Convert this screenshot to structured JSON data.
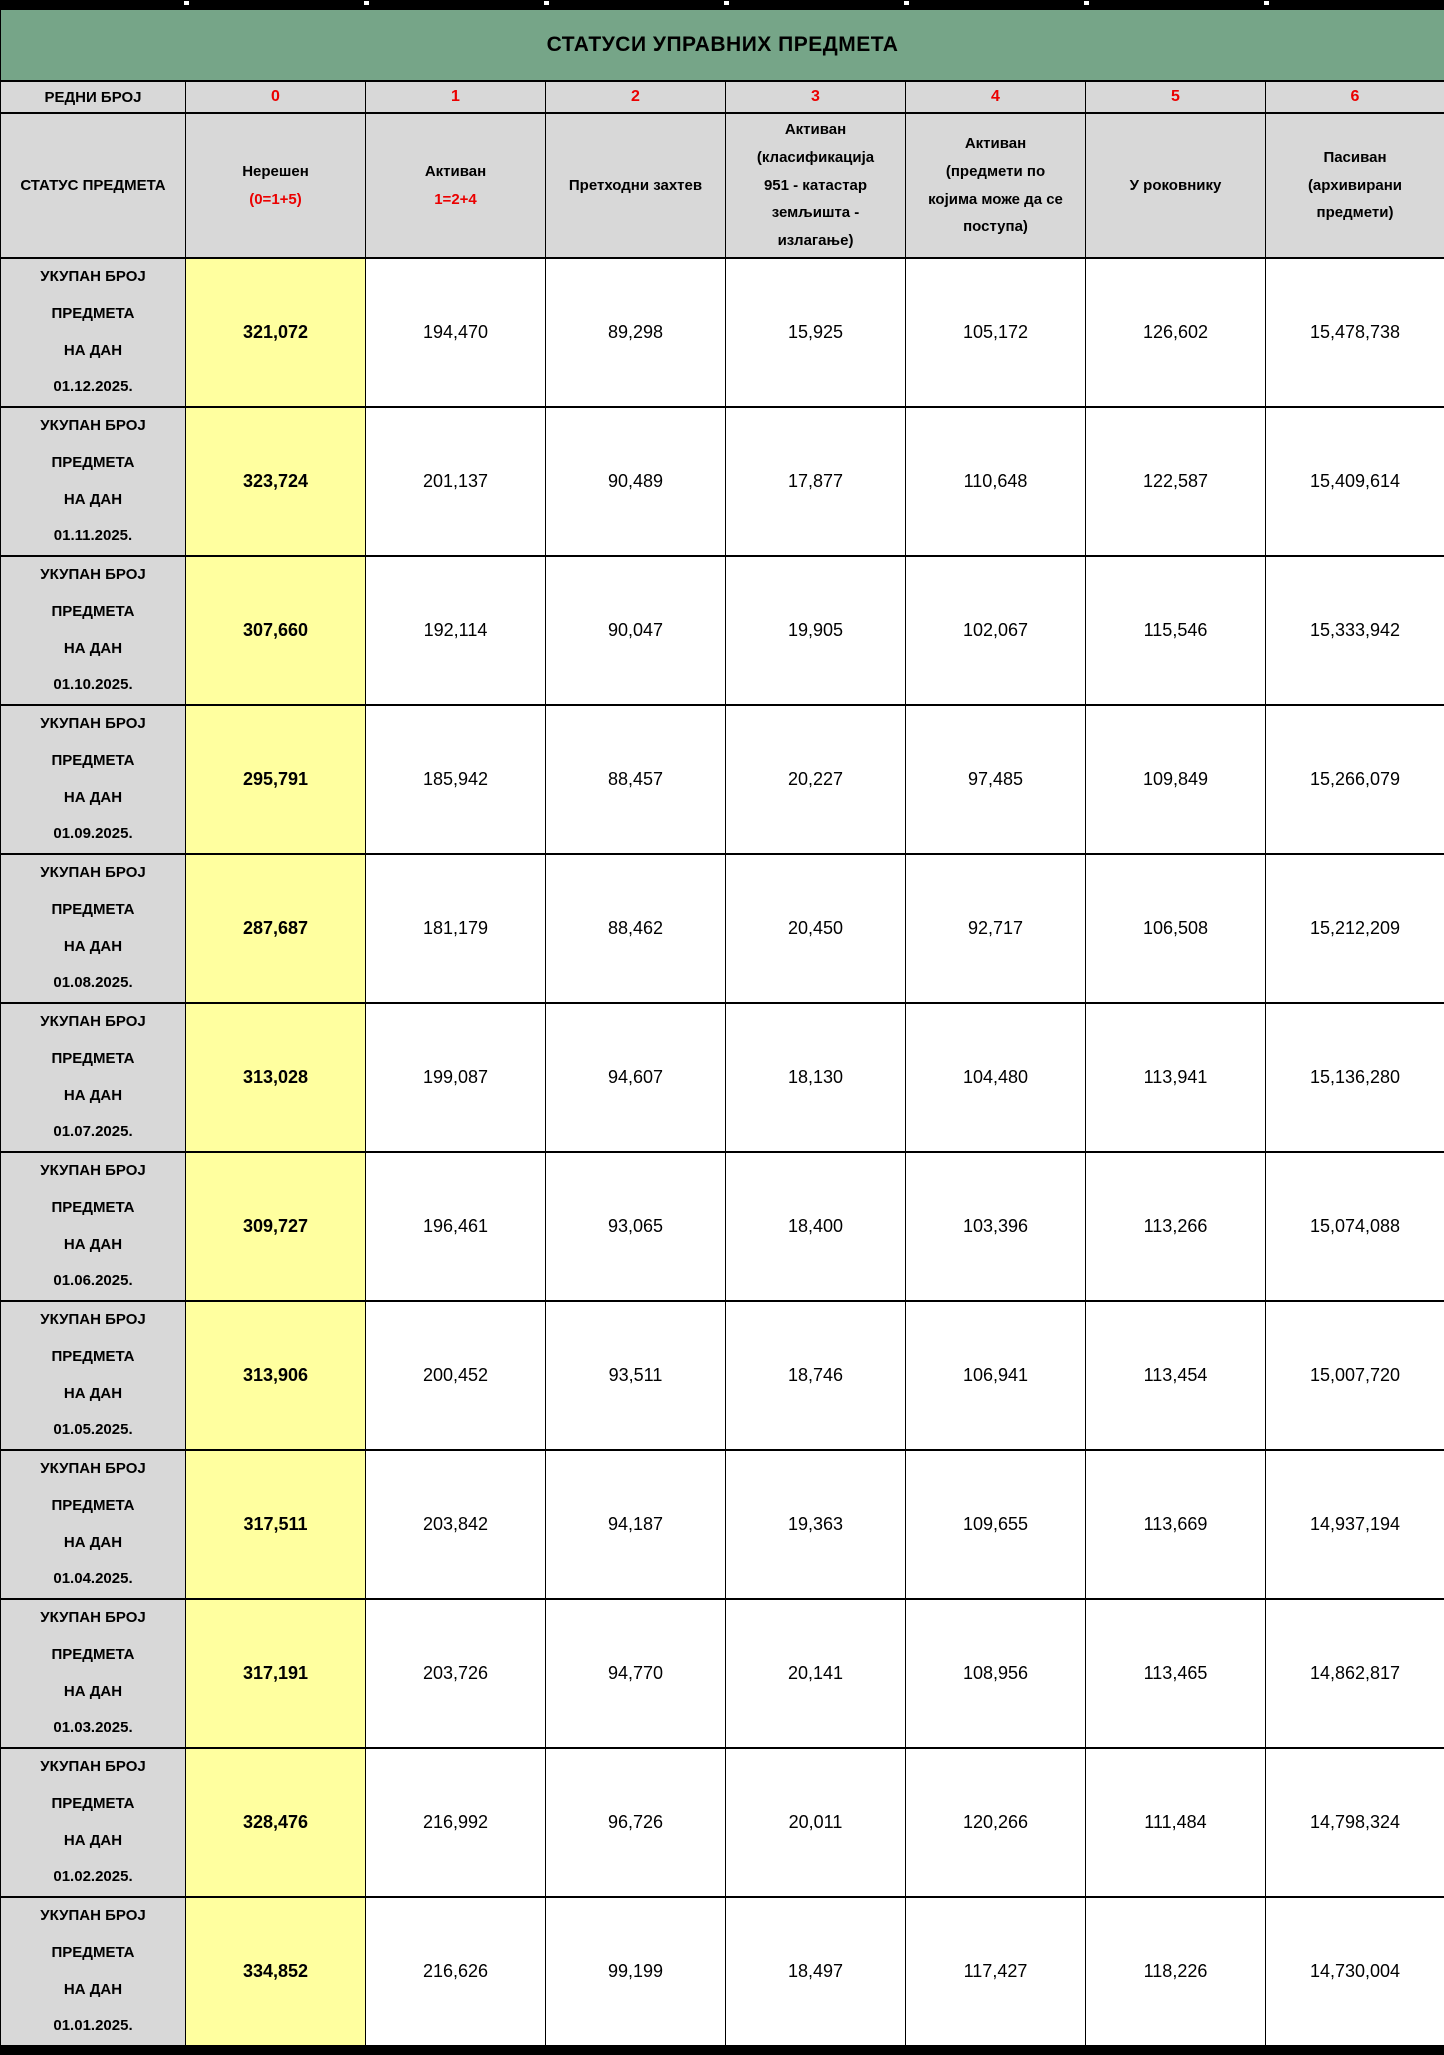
{
  "title": "СТАТУСИ УПРАВНИХ ПРЕДМЕТА",
  "colors": {
    "title_bg": "#76a588",
    "header_bg": "#d8d8d8",
    "highlight_bg": "#ffff9f",
    "red_text": "#eb0000",
    "border": "#000000"
  },
  "table": {
    "corner": {
      "ordinal_label": "РЕДНИ БРОЈ",
      "status_label": "СТАТУС ПРЕДМЕТА"
    },
    "columns": [
      {
        "index": "0",
        "black_lines": [
          "Нерешен"
        ],
        "red_lines": [
          "(0=1+5)"
        ]
      },
      {
        "index": "1",
        "black_lines": [
          "Активан"
        ],
        "red_lines": [
          "1=2+4"
        ]
      },
      {
        "index": "2",
        "black_lines": [
          "Претходни захтев"
        ],
        "red_lines": []
      },
      {
        "index": "3",
        "black_lines": [
          "Активан",
          "(класификација",
          "951 -  катастар",
          "земљишта -",
          "излагање)"
        ],
        "red_lines": []
      },
      {
        "index": "4",
        "black_lines": [
          "Активан",
          "(предмети по",
          "којима може да се",
          "поступа)"
        ],
        "red_lines": []
      },
      {
        "index": "5",
        "black_lines": [
          "У роковнику"
        ],
        "red_lines": []
      },
      {
        "index": "6",
        "black_lines": [
          "Пасиван",
          "(архивирани",
          "предмети)"
        ],
        "red_lines": []
      }
    ],
    "row_label_lines": [
      "УКУПАН БРОЈ",
      "ПРЕДМЕТА",
      "НА ДАН"
    ],
    "rows": [
      {
        "date": "01.12.2025.",
        "values": [
          "321,072",
          "194,470",
          "89,298",
          "15,925",
          "105,172",
          "126,602",
          "15,478,738"
        ]
      },
      {
        "date": "01.11.2025.",
        "values": [
          "323,724",
          "201,137",
          "90,489",
          "17,877",
          "110,648",
          "122,587",
          "15,409,614"
        ]
      },
      {
        "date": "01.10.2025.",
        "values": [
          "307,660",
          "192,114",
          "90,047",
          "19,905",
          "102,067",
          "115,546",
          "15,333,942"
        ]
      },
      {
        "date": "01.09.2025.",
        "values": [
          "295,791",
          "185,942",
          "88,457",
          "20,227",
          "97,485",
          "109,849",
          "15,266,079"
        ]
      },
      {
        "date": "01.08.2025.",
        "values": [
          "287,687",
          "181,179",
          "88,462",
          "20,450",
          "92,717",
          "106,508",
          "15,212,209"
        ]
      },
      {
        "date": "01.07.2025.",
        "values": [
          "313,028",
          "199,087",
          "94,607",
          "18,130",
          "104,480",
          "113,941",
          "15,136,280"
        ]
      },
      {
        "date": "01.06.2025.",
        "values": [
          "309,727",
          "196,461",
          "93,065",
          "18,400",
          "103,396",
          "113,266",
          "15,074,088"
        ]
      },
      {
        "date": "01.05.2025.",
        "values": [
          "313,906",
          "200,452",
          "93,511",
          "18,746",
          "106,941",
          "113,454",
          "15,007,720"
        ]
      },
      {
        "date": "01.04.2025.",
        "values": [
          "317,511",
          "203,842",
          "94,187",
          "19,363",
          "109,655",
          "113,669",
          "14,937,194"
        ]
      },
      {
        "date": "01.03.2025.",
        "values": [
          "317,191",
          "203,726",
          "94,770",
          "20,141",
          "108,956",
          "113,465",
          "14,862,817"
        ]
      },
      {
        "date": "01.02.2025.",
        "values": [
          "328,476",
          "216,992",
          "96,726",
          "20,011",
          "120,266",
          "111,484",
          "14,798,324"
        ]
      },
      {
        "date": "01.01.2025.",
        "values": [
          "334,852",
          "216,626",
          "99,199",
          "18,497",
          "117,427",
          "118,226",
          "14,730,004"
        ]
      }
    ]
  }
}
